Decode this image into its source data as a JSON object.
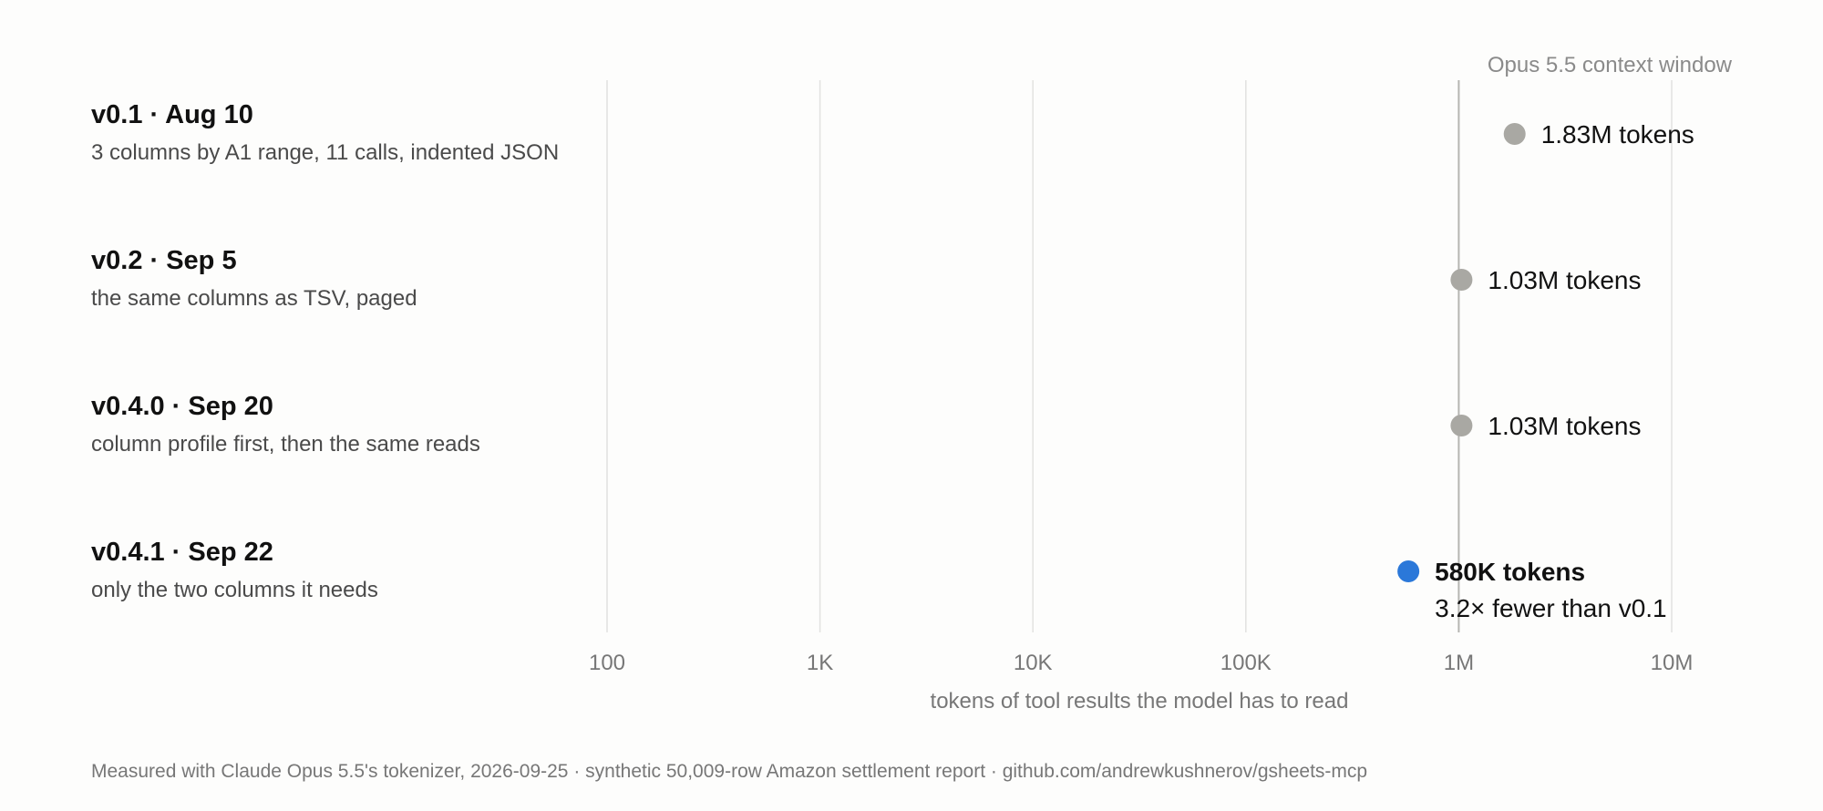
{
  "chart_data": {
    "type": "scatter",
    "x_scale": "log",
    "xlim": [
      100,
      10000000
    ],
    "x_ticks": [
      {
        "value": 100,
        "label": "100"
      },
      {
        "value": 1000,
        "label": "1K"
      },
      {
        "value": 10000,
        "label": "10K"
      },
      {
        "value": 100000,
        "label": "100K"
      },
      {
        "value": 1000000,
        "label": "1M"
      },
      {
        "value": 10000000,
        "label": "10M"
      }
    ],
    "xlabel": "tokens of tool results the model has to read",
    "grid": true,
    "reference_line": {
      "value": 1000000,
      "label": "Opus 5.5 context window"
    },
    "rows": [
      {
        "title": "v0.1 · Aug 10",
        "description": "3 columns by A1 range, 11 calls, indented JSON",
        "value": 1830000,
        "value_label": "1.83M tokens",
        "highlight": false,
        "color": "#a9a8a3"
      },
      {
        "title": "v0.2 · Sep 5",
        "description": "the same columns as TSV, paged",
        "value": 1030000,
        "value_label": "1.03M tokens",
        "highlight": false,
        "color": "#a9a8a3"
      },
      {
        "title": "v0.4.0 · Sep 20",
        "description": "column profile first, then the same reads",
        "value": 1030000,
        "value_label": "1.03M tokens",
        "highlight": false,
        "color": "#a9a8a3"
      },
      {
        "title": "v0.4.1 · Sep 22",
        "description": "only the two columns it needs",
        "value": 580000,
        "value_label": "580K tokens",
        "note": "3.2× fewer than v0.1",
        "highlight": true,
        "color": "#2b78d9"
      }
    ]
  },
  "footnote": "Measured with Claude Opus 5.5's tokenizer, 2026-09-25 · synthetic 50,009-row Amazon settlement report · github.com/andrewkushnerov/gsheets-mcp"
}
